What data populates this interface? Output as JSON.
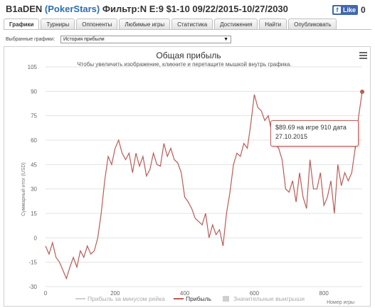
{
  "header": {
    "player": "B1aDEN",
    "room": "PokerStars",
    "filter": "Фильтр:N E:9 $1-10 09/22/2015-10/27/2030",
    "like_label": "Like",
    "like_count": "0"
  },
  "tabs": [
    {
      "label": "Графики",
      "active": true
    },
    {
      "label": "Турниры"
    },
    {
      "label": "Оппоненты"
    },
    {
      "label": "Любимые игры"
    },
    {
      "label": "Статистика"
    },
    {
      "label": "Достижения"
    },
    {
      "label": "Найти"
    },
    {
      "label": "Опубликовать"
    }
  ],
  "graph_select": {
    "label": "Выбранные графики:",
    "value": "История прибыли"
  },
  "tooltip": {
    "line1": "$89.69 на игре 910 дата",
    "line2": "27.10.2015"
  },
  "chart_data": {
    "type": "line",
    "title": "Общая прибыль",
    "subtitle": "Чтобы увеличить изображение, кликните и перетащите мышкой внутрь графика.",
    "xlabel": "Номер игры",
    "ylabel": "Суммарный итог (USD)",
    "xlim": [
      0,
      910
    ],
    "ylim": [
      -30,
      105
    ],
    "x_ticks": [
      "0",
      "200",
      "400",
      "600",
      "800"
    ],
    "y_ticks": [
      "105",
      "90",
      "75",
      "60",
      "45",
      "30",
      "15",
      "0",
      "-15",
      "-30"
    ],
    "legend": [
      "Прибыль за минусом рейка",
      "Прибыль",
      "Значительные выигрыши"
    ],
    "line_color": "#b85c57",
    "series": [
      {
        "name": "Прибыль",
        "x": [
          0,
          10,
          20,
          30,
          40,
          50,
          60,
          70,
          80,
          90,
          100,
          110,
          120,
          130,
          140,
          150,
          160,
          170,
          180,
          190,
          200,
          210,
          220,
          230,
          240,
          250,
          260,
          270,
          280,
          290,
          300,
          310,
          320,
          330,
          340,
          350,
          360,
          370,
          380,
          390,
          400,
          410,
          420,
          430,
          440,
          450,
          460,
          470,
          480,
          490,
          500,
          510,
          520,
          530,
          540,
          550,
          560,
          570,
          580,
          590,
          600,
          610,
          620,
          630,
          640,
          650,
          660,
          670,
          680,
          690,
          700,
          710,
          720,
          730,
          740,
          750,
          760,
          770,
          780,
          790,
          800,
          810,
          820,
          830,
          840,
          850,
          860,
          870,
          880,
          890,
          900,
          910
        ],
        "values": [
          -5,
          -10,
          -3,
          -12,
          -15,
          -20,
          -25,
          -18,
          -12,
          -18,
          -8,
          -12,
          -5,
          -10,
          -8,
          0,
          15,
          35,
          50,
          45,
          55,
          60,
          52,
          48,
          52,
          40,
          52,
          44,
          50,
          38,
          42,
          52,
          45,
          44,
          58,
          50,
          55,
          48,
          46,
          40,
          25,
          22,
          18,
          12,
          10,
          8,
          15,
          0,
          8,
          2,
          5,
          -5,
          15,
          28,
          45,
          52,
          50,
          58,
          55,
          70,
          88,
          80,
          78,
          72,
          75,
          65,
          58,
          55,
          48,
          30,
          28,
          35,
          22,
          40,
          25,
          18,
          48,
          30,
          30,
          40,
          20,
          25,
          35,
          15,
          45,
          32,
          40,
          35,
          40,
          55,
          75,
          89.69
        ]
      }
    ]
  }
}
